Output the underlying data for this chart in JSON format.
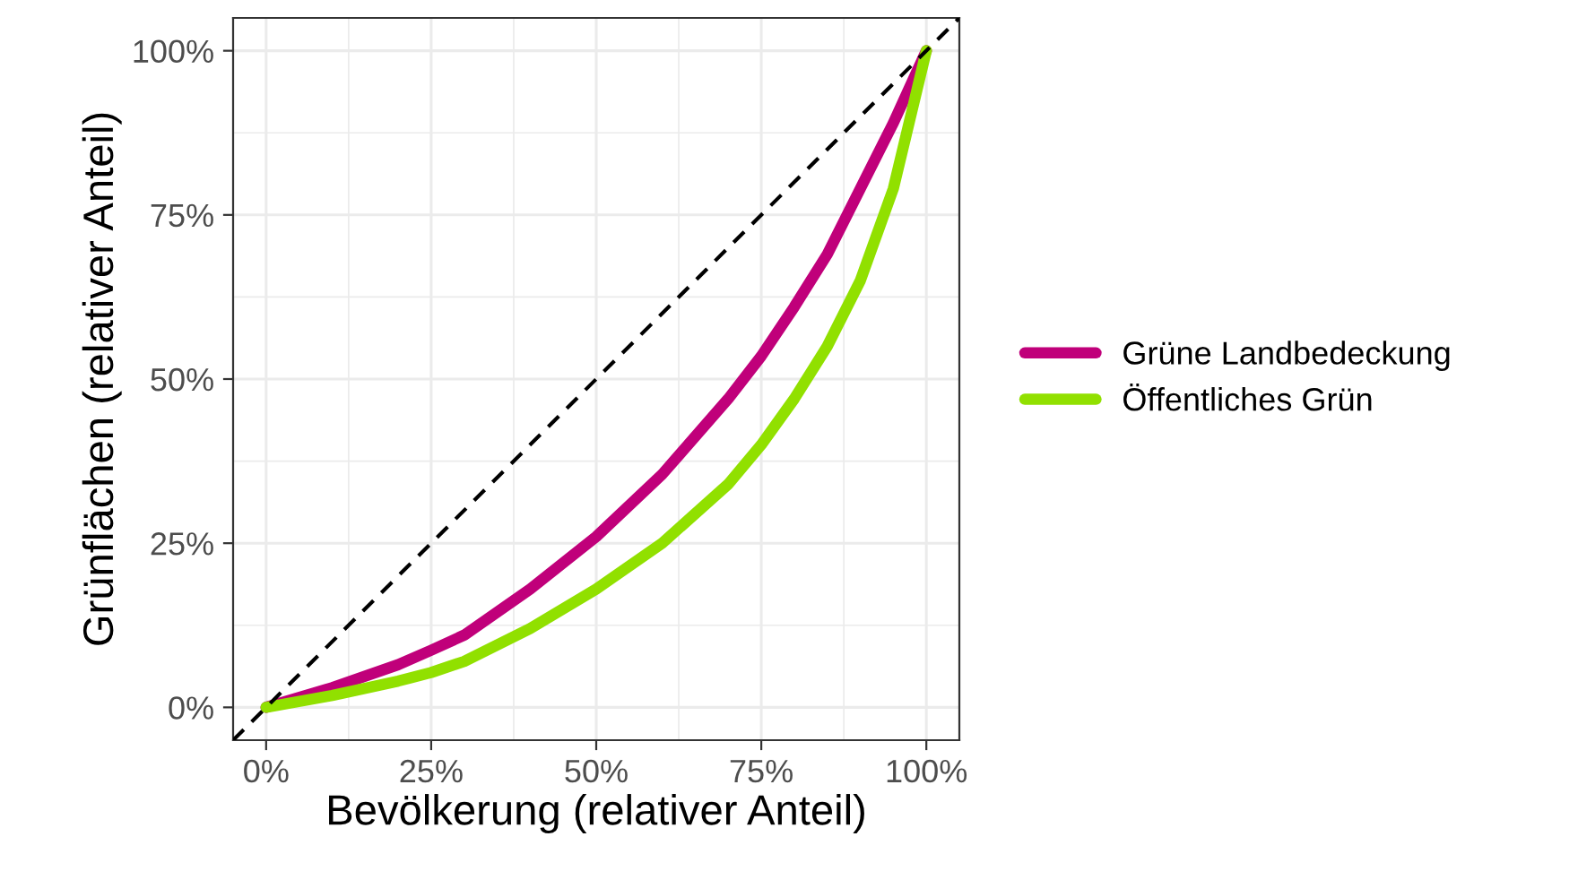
{
  "chart_data": {
    "type": "line",
    "xlabel": "Bevölkerung (relativer Anteil)",
    "ylabel": "Grünflächen (relativer Anteil)",
    "xlim": [
      -5,
      105
    ],
    "ylim": [
      -5,
      105
    ],
    "xticks": [
      {
        "value": 0,
        "label": "0%"
      },
      {
        "value": 25,
        "label": "25%"
      },
      {
        "value": 50,
        "label": "50%"
      },
      {
        "value": 75,
        "label": "75%"
      },
      {
        "value": 100,
        "label": "100%"
      }
    ],
    "yticks": [
      {
        "value": 0,
        "label": "0%"
      },
      {
        "value": 25,
        "label": "25%"
      },
      {
        "value": 50,
        "label": "50%"
      },
      {
        "value": 75,
        "label": "75%"
      },
      {
        "value": 100,
        "label": "100%"
      }
    ],
    "grid": true,
    "legend": "right",
    "series": [
      {
        "name": "Grüne Landbedeckung",
        "color": "#c0007a",
        "x": [
          0,
          10,
          20,
          25,
          30,
          40,
          50,
          60,
          70,
          75,
          80,
          85,
          90,
          95,
          100
        ],
        "values": [
          0,
          3,
          6.5,
          8.7,
          11,
          18,
          26,
          35.5,
          47,
          53.5,
          61,
          69,
          79,
          89,
          100
        ]
      },
      {
        "name": "Öffentliches Grün",
        "color": "#91e000",
        "x": [
          0,
          10,
          20,
          25,
          30,
          40,
          50,
          60,
          70,
          75,
          80,
          85,
          90,
          95,
          100
        ],
        "values": [
          0,
          1.8,
          4,
          5.3,
          7,
          12,
          18,
          25,
          34,
          40,
          47,
          55,
          65,
          79,
          100
        ]
      },
      {
        "color": "#000000",
        "line_style": "dashed",
        "x": [
          -5,
          105
        ],
        "values": [
          -5,
          105
        ]
      }
    ]
  }
}
